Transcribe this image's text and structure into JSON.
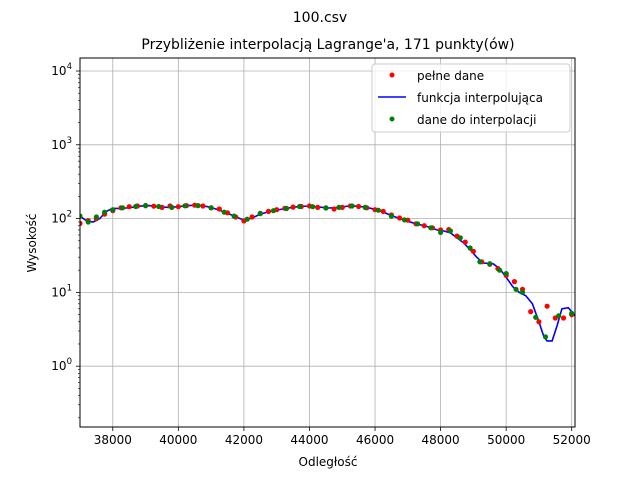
{
  "chart_data": {
    "type": "scatter",
    "suptitle": "100.csv",
    "title": "Przybliżenie interpolacją Lagrange'a, 171 punkty(ów)",
    "xlabel": "Odległość",
    "ylabel": "Wysokość",
    "yscale": "log",
    "xlim": [
      37000,
      52100
    ],
    "ylim": [
      0.15,
      15000
    ],
    "xticks": [
      38000,
      40000,
      42000,
      44000,
      46000,
      48000,
      50000,
      52000
    ],
    "xtick_labels": [
      "38000",
      "40000",
      "42000",
      "44000",
      "46000",
      "48000",
      "50000",
      "52000"
    ],
    "ytick_exponents": [
      "0",
      "1",
      "2",
      "3",
      "4"
    ],
    "grid": true,
    "legend_position": "top-right",
    "series": [
      {
        "name": "pełne dane",
        "kind": "markers",
        "color": "#ff0000",
        "points": [
          [
            37000,
            86
          ],
          [
            37250,
            94
          ],
          [
            37500,
            100
          ],
          [
            37750,
            115
          ],
          [
            38000,
            128
          ],
          [
            38250,
            140
          ],
          [
            38500,
            145
          ],
          [
            38750,
            148
          ],
          [
            39000,
            150
          ],
          [
            39250,
            147
          ],
          [
            39500,
            142
          ],
          [
            39750,
            148
          ],
          [
            40000,
            145
          ],
          [
            40250,
            150
          ],
          [
            40500,
            152
          ],
          [
            40750,
            148
          ],
          [
            41000,
            140
          ],
          [
            41250,
            135
          ],
          [
            41500,
            120
          ],
          [
            41750,
            105
          ],
          [
            42000,
            93
          ],
          [
            42250,
            105
          ],
          [
            42500,
            118
          ],
          [
            42750,
            125
          ],
          [
            43000,
            132
          ],
          [
            43250,
            138
          ],
          [
            43500,
            143
          ],
          [
            43750,
            146
          ],
          [
            44000,
            148
          ],
          [
            44250,
            142
          ],
          [
            44500,
            140
          ],
          [
            44750,
            135
          ],
          [
            45000,
            142
          ],
          [
            45250,
            148
          ],
          [
            45500,
            146
          ],
          [
            45750,
            140
          ],
          [
            46000,
            132
          ],
          [
            46250,
            125
          ],
          [
            46500,
            112
          ],
          [
            46750,
            102
          ],
          [
            47000,
            95
          ],
          [
            47250,
            85
          ],
          [
            47500,
            80
          ],
          [
            47750,
            75
          ],
          [
            48000,
            70
          ],
          [
            48250,
            71
          ],
          [
            48500,
            58
          ],
          [
            48750,
            48
          ],
          [
            49000,
            36
          ],
          [
            49250,
            26
          ],
          [
            49500,
            24
          ],
          [
            49750,
            21
          ],
          [
            50000,
            17
          ],
          [
            50250,
            14
          ],
          [
            50500,
            11
          ],
          [
            50750,
            5.5
          ],
          [
            51000,
            4.0
          ],
          [
            51250,
            6.5
          ],
          [
            51500,
            4.5
          ],
          [
            51750,
            4.5
          ],
          [
            52000,
            5.0
          ]
        ]
      },
      {
        "name": "funkcja interpolująca",
        "kind": "line",
        "color": "#0000ff",
        "points": [
          [
            37000,
            108
          ],
          [
            37200,
            93
          ],
          [
            37400,
            90
          ],
          [
            37600,
            100
          ],
          [
            37800,
            125
          ],
          [
            38000,
            138
          ],
          [
            38200,
            137
          ],
          [
            38500,
            140
          ],
          [
            38800,
            147
          ],
          [
            39100,
            150
          ],
          [
            39400,
            145
          ],
          [
            39700,
            142
          ],
          [
            40000,
            145
          ],
          [
            40300,
            150
          ],
          [
            40600,
            152
          ],
          [
            40900,
            145
          ],
          [
            41200,
            133
          ],
          [
            41500,
            118
          ],
          [
            41750,
            106
          ],
          [
            42000,
            95
          ],
          [
            42250,
            102
          ],
          [
            42500,
            115
          ],
          [
            42800,
            125
          ],
          [
            43100,
            133
          ],
          [
            43400,
            140
          ],
          [
            43700,
            146
          ],
          [
            44000,
            148
          ],
          [
            44300,
            143
          ],
          [
            44600,
            139
          ],
          [
            44900,
            142
          ],
          [
            45200,
            148
          ],
          [
            45500,
            147
          ],
          [
            45800,
            140
          ],
          [
            46100,
            130
          ],
          [
            46400,
            115
          ],
          [
            46700,
            102
          ],
          [
            47000,
            92
          ],
          [
            47300,
            84
          ],
          [
            47600,
            78
          ],
          [
            47900,
            70
          ],
          [
            48100,
            68
          ],
          [
            48300,
            64
          ],
          [
            48500,
            55
          ],
          [
            48700,
            47
          ],
          [
            48900,
            38
          ],
          [
            49100,
            30
          ],
          [
            49300,
            25
          ],
          [
            49600,
            24.5
          ],
          [
            49800,
            21
          ],
          [
            50000,
            16
          ],
          [
            50200,
            12
          ],
          [
            50400,
            10
          ],
          [
            50600,
            9
          ],
          [
            50800,
            7
          ],
          [
            51000,
            4.0
          ],
          [
            51150,
            2.5
          ],
          [
            51250,
            2.2
          ],
          [
            51400,
            2.2
          ],
          [
            51550,
            3.5
          ],
          [
            51700,
            6.0
          ],
          [
            51900,
            6.2
          ],
          [
            52100,
            4.8
          ]
        ]
      },
      {
        "name": "dane do interpolacji",
        "kind": "markers",
        "color": "#008000",
        "points": [
          [
            37000,
            108
          ],
          [
            37250,
            90
          ],
          [
            37500,
            105
          ],
          [
            37750,
            122
          ],
          [
            38000,
            132
          ],
          [
            38300,
            140
          ],
          [
            38700,
            146
          ],
          [
            39000,
            150
          ],
          [
            39400,
            146
          ],
          [
            39800,
            142
          ],
          [
            40200,
            149
          ],
          [
            40600,
            150
          ],
          [
            41000,
            140
          ],
          [
            41400,
            122
          ],
          [
            41700,
            108
          ],
          [
            42100,
            98
          ],
          [
            42500,
            117
          ],
          [
            42900,
            128
          ],
          [
            43300,
            137
          ],
          [
            43700,
            146
          ],
          [
            44100,
            145
          ],
          [
            44500,
            139
          ],
          [
            44900,
            142
          ],
          [
            45300,
            148
          ],
          [
            45700,
            142
          ],
          [
            46100,
            130
          ],
          [
            46500,
            108
          ],
          [
            46900,
            96
          ],
          [
            47300,
            85
          ],
          [
            47700,
            75
          ],
          [
            48000,
            65
          ],
          [
            48300,
            68
          ],
          [
            48600,
            55
          ],
          [
            48900,
            40
          ],
          [
            49200,
            26
          ],
          [
            49500,
            24.5
          ],
          [
            49800,
            20
          ],
          [
            50000,
            18
          ],
          [
            50300,
            11
          ],
          [
            50500,
            10
          ],
          [
            50900,
            4.6
          ],
          [
            51200,
            2.5
          ],
          [
            51600,
            4.8
          ],
          [
            52000,
            5.2
          ]
        ]
      }
    ]
  }
}
